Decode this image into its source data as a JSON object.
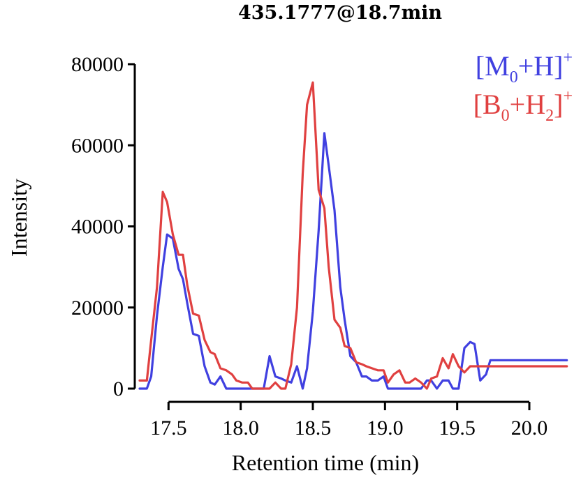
{
  "chart_data": {
    "type": "line",
    "title": "435.1777@18.7min",
    "xlabel": "Retention time (min)",
    "ylabel": "Intensity",
    "xlim": [
      17.3,
      20.3
    ],
    "ylim": [
      0,
      80000
    ],
    "x_ticks": [
      "17.5",
      "18.0",
      "18.5",
      "19.0",
      "19.5",
      "20.0"
    ],
    "y_ticks": [
      "0",
      "20000",
      "40000",
      "60000",
      "80000"
    ],
    "grid": false,
    "legend_position": "top-right",
    "series": [
      {
        "legend_base": "[M",
        "legend_sub": "0",
        "legend_mid": "+H]",
        "legend_sub2": "",
        "legend_end": "",
        "legend_sup": "+",
        "color": "#4040e0",
        "x": [
          17.3,
          17.35,
          17.38,
          17.42,
          17.46,
          17.49,
          17.53,
          17.57,
          17.6,
          17.63,
          17.67,
          17.71,
          17.75,
          17.79,
          17.82,
          17.86,
          17.9,
          17.94,
          17.97,
          18.01,
          18.05,
          18.08,
          18.12,
          18.16,
          18.2,
          18.24,
          18.28,
          18.31,
          18.35,
          18.39,
          18.43,
          18.46,
          18.5,
          18.54,
          18.58,
          18.61,
          18.65,
          18.69,
          18.72,
          18.76,
          18.8,
          18.84,
          18.87,
          18.91,
          18.95,
          18.99,
          19.02,
          19.06,
          19.1,
          19.14,
          19.17,
          19.21,
          19.25,
          19.29,
          19.32,
          19.36,
          19.4,
          19.44,
          19.47,
          19.51,
          19.55,
          19.59,
          19.62,
          19.66,
          19.7,
          19.73,
          19.77,
          19.81,
          19.85,
          19.88,
          19.92,
          19.96,
          19.99,
          20.03,
          20.07,
          20.1,
          20.14,
          20.18,
          20.22,
          20.26
        ],
        "y": [
          0,
          0,
          3000,
          18000,
          30000,
          38000,
          37000,
          29500,
          27000,
          21000,
          13500,
          13000,
          5500,
          1500,
          1000,
          3000,
          0,
          0,
          0,
          0,
          0,
          0,
          0,
          0,
          8000,
          3000,
          2500,
          2000,
          1500,
          5500,
          0,
          5000,
          19000,
          39000,
          63000,
          55000,
          44000,
          25000,
          17000,
          8000,
          6500,
          3000,
          3000,
          2000,
          2000,
          3000,
          0,
          0,
          0,
          0,
          0,
          0,
          0,
          2000,
          2000,
          0,
          2000,
          2000,
          0,
          0,
          10000,
          11500,
          11000,
          2000,
          3500,
          7000,
          7000,
          7000,
          7000,
          7000,
          7000,
          7000,
          7000,
          7000,
          7000,
          7000,
          7000,
          7000,
          7000,
          7000
        ]
      },
      {
        "legend_base": "[B",
        "legend_sub": "0",
        "legend_mid": "+H",
        "legend_sub2": "2",
        "legend_end": "]",
        "legend_sup": "+",
        "color": "#e04040",
        "x": [
          17.3,
          17.35,
          17.38,
          17.42,
          17.46,
          17.49,
          17.53,
          17.57,
          17.6,
          17.63,
          17.67,
          17.71,
          17.75,
          17.79,
          17.82,
          17.86,
          17.9,
          17.94,
          17.97,
          18.01,
          18.05,
          18.08,
          18.12,
          18.16,
          18.2,
          18.24,
          18.28,
          18.31,
          18.35,
          18.39,
          18.43,
          18.46,
          18.5,
          18.54,
          18.58,
          18.61,
          18.65,
          18.69,
          18.72,
          18.76,
          18.8,
          18.84,
          18.87,
          18.91,
          18.95,
          18.99,
          19.02,
          19.06,
          19.1,
          19.14,
          19.17,
          19.21,
          19.25,
          19.29,
          19.32,
          19.36,
          19.4,
          19.44,
          19.47,
          19.51,
          19.55,
          19.59,
          19.62,
          19.66,
          19.7,
          19.73,
          19.77,
          19.81,
          19.85,
          19.88,
          19.92,
          19.96,
          19.99,
          20.03,
          20.07,
          20.1,
          20.14,
          20.18,
          20.22,
          20.26
        ],
        "y": [
          2000,
          2000,
          12000,
          25000,
          48500,
          46000,
          38000,
          33000,
          33000,
          25500,
          18500,
          18000,
          12000,
          9000,
          8500,
          5000,
          4500,
          3500,
          2000,
          1500,
          1500,
          0,
          0,
          0,
          0,
          1500,
          0,
          0,
          6000,
          20000,
          53000,
          70000,
          75500,
          49000,
          44500,
          30000,
          17000,
          15000,
          10500,
          10000,
          6500,
          6000,
          5500,
          5000,
          4500,
          4500,
          1500,
          3500,
          4500,
          1500,
          1500,
          2500,
          1500,
          0,
          2500,
          3000,
          7500,
          5000,
          8500,
          5500,
          4000,
          5500,
          5500,
          5500,
          5500,
          5500,
          5500,
          5500,
          5500,
          5500,
          5500,
          5500,
          5500,
          5500,
          5500,
          5500,
          5500,
          5500,
          5500,
          5500
        ]
      }
    ]
  }
}
